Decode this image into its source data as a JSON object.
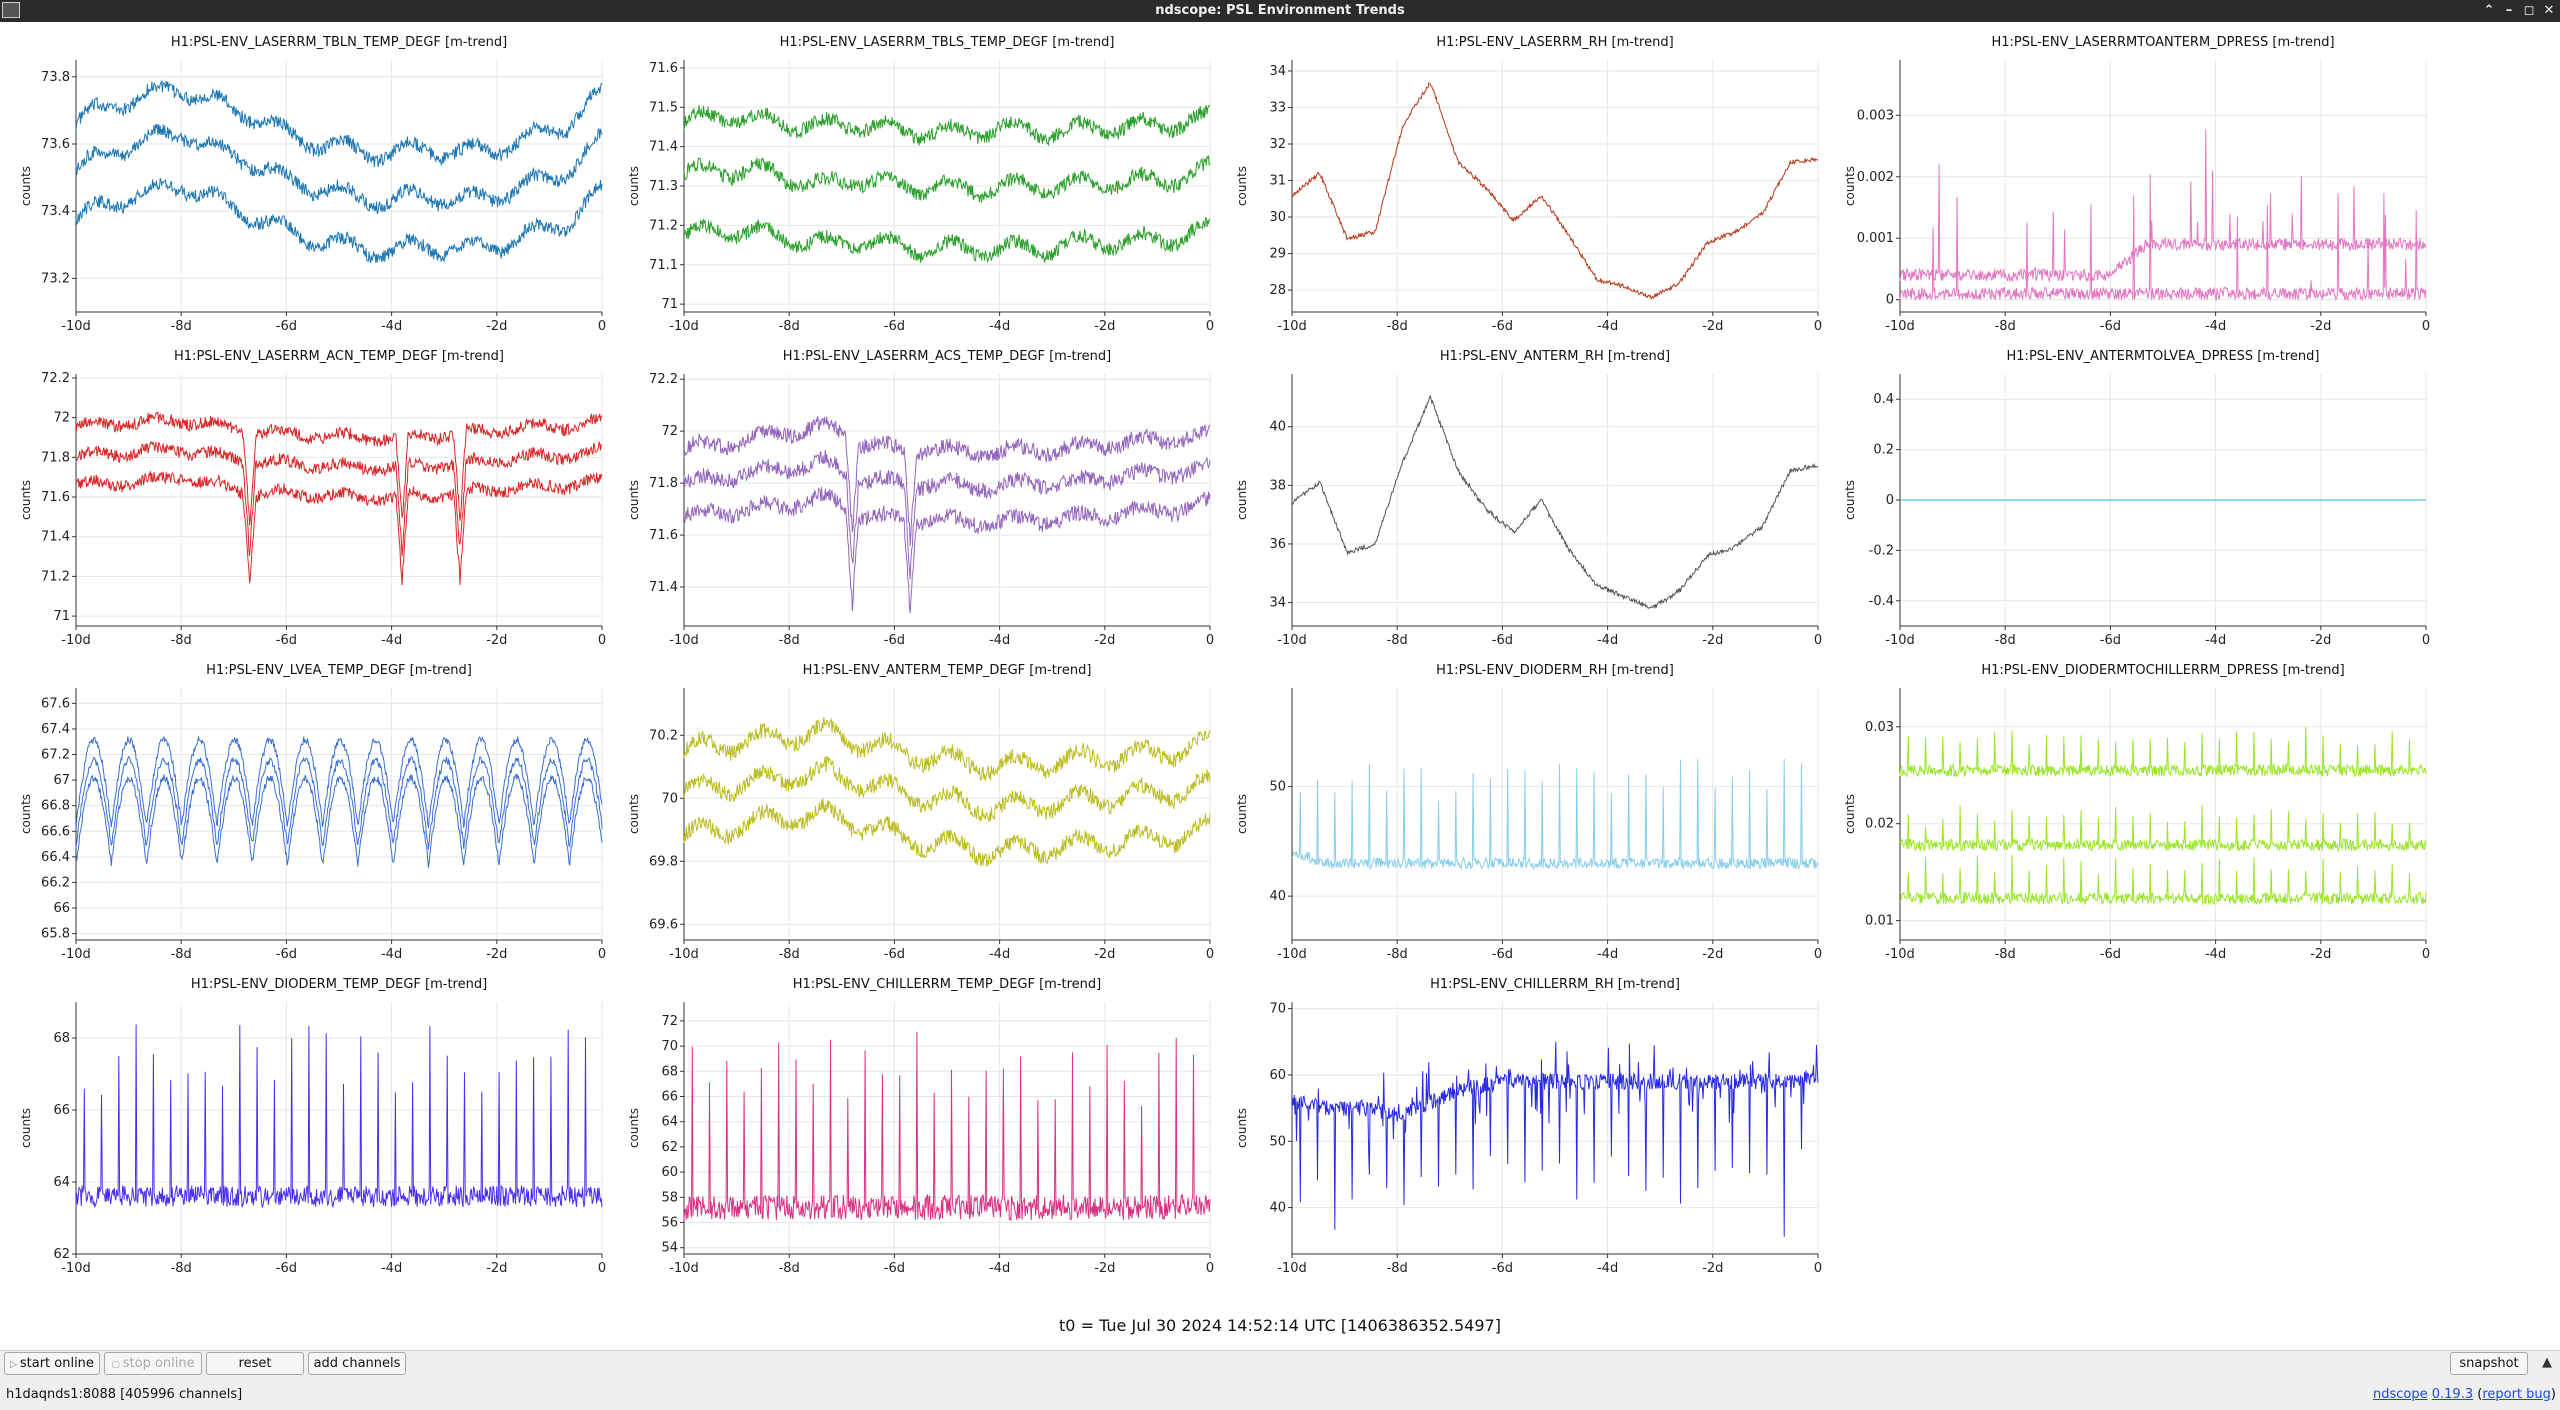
{
  "window": {
    "title": "ndscope: PSL Environment Trends"
  },
  "xticks": [
    "-10d",
    "-8d",
    "-6d",
    "-4d",
    "-2d",
    "0"
  ],
  "ylabel": "counts",
  "plots": [
    {
      "title": "H1:PSL-ENV_LASERRM_TBLN_TEMP_DEGF [m-trend]",
      "color": "#1f77b4",
      "yticks": [
        "73.8",
        "73.6",
        "73.4",
        "73.2"
      ],
      "ylim": [
        73.1,
        73.85
      ],
      "bands": [
        [
          73.66,
          73.72,
          73.74,
          73.77,
          73.72,
          73.69,
          73.63,
          73.6,
          73.58,
          73.57,
          73.59,
          73.57,
          73.59,
          73.62,
          73.66,
          73.75
        ],
        [
          73.52,
          73.58,
          73.61,
          73.64,
          73.58,
          73.55,
          73.49,
          73.47,
          73.44,
          73.43,
          73.45,
          73.43,
          73.45,
          73.48,
          73.52,
          73.61
        ],
        [
          73.37,
          73.43,
          73.45,
          73.48,
          73.43,
          73.39,
          73.34,
          73.31,
          73.29,
          73.28,
          73.3,
          73.28,
          73.3,
          73.33,
          73.37,
          73.46
        ]
      ],
      "noise": 0.02,
      "wave": 0.025
    },
    {
      "title": "H1:PSL-ENV_LASERRM_TBLS_TEMP_DEGF [m-trend]",
      "color": "#2ca02c",
      "yticks": [
        "71.6",
        "71.5",
        "71.4",
        "71.3",
        "71.2",
        "71.1",
        "71"
      ],
      "ylim": [
        70.98,
        71.62
      ],
      "bands": [
        [
          71.46,
          71.48,
          71.47,
          71.46,
          71.45,
          71.46,
          71.44,
          71.44,
          71.43,
          71.45,
          71.44,
          71.44,
          71.45,
          71.45,
          71.46,
          71.47
        ],
        [
          71.33,
          71.34,
          71.34,
          71.32,
          71.3,
          71.32,
          71.3,
          71.3,
          71.29,
          71.3,
          71.3,
          71.3,
          71.31,
          71.31,
          71.32,
          71.34
        ],
        [
          71.17,
          71.19,
          71.18,
          71.17,
          71.15,
          71.16,
          71.15,
          71.14,
          71.14,
          71.14,
          71.14,
          71.15,
          71.16,
          71.16,
          71.17,
          71.19
        ]
      ],
      "noise": 0.018,
      "wave": 0.02
    },
    {
      "title": "H1:PSL-ENV_LASERRM_RH [m-trend]",
      "color": "#b83a1c",
      "yticks": [
        "34",
        "33",
        "32",
        "31",
        "30",
        "29",
        "28"
      ],
      "ylim": [
        27.4,
        34.3
      ],
      "bands": [
        [
          30.6,
          31.2,
          29.4,
          29.6,
          32.5,
          33.7,
          31.5,
          30.8,
          29.9,
          30.6,
          29.5,
          28.3,
          28.1,
          27.8,
          28.2,
          29.3,
          29.6,
          30.1,
          31.5,
          31.6
        ]
      ],
      "noise": 0.06,
      "wave": 0.0
    },
    {
      "title": "H1:PSL-ENV_LASERRMTOANTERM_DPRESS [m-trend]",
      "color": "#e377c2",
      "yticks": [
        "0.003",
        "0.002",
        "0.001",
        "0"
      ],
      "ylim": [
        -0.0002,
        0.0039
      ],
      "bands": [
        [
          0.0004,
          0.0004,
          0.0004,
          0.0004,
          0.0004,
          0.0004,
          0.0004,
          0.0009,
          0.0009,
          0.0009,
          0.0009,
          0.0009,
          0.0009,
          0.0009,
          0.0009,
          0.0009
        ],
        [
          0.0001,
          0.0001,
          0.0001,
          0.0001,
          0.0001,
          0.0001,
          0.0001,
          0.0001,
          0.0001,
          0.0001,
          0.0001,
          0.0001,
          0.0001,
          0.0001,
          0.0001,
          0.0001
        ]
      ],
      "noise": 0.0001,
      "wave": 0.0,
      "spiky": true
    },
    {
      "title": "H1:PSL-ENV_LASERRM_ACN_TEMP_DEGF [m-trend]",
      "color": "#d62728",
      "yticks": [
        "72.2",
        "72",
        "71.8",
        "71.6",
        "71.4",
        "71.2",
        "71"
      ],
      "ylim": [
        70.95,
        72.22
      ],
      "bands": [
        [
          71.95,
          71.97,
          71.98,
          71.99,
          71.96,
          71.93,
          71.92,
          71.91,
          71.9,
          71.9,
          71.91,
          71.92,
          71.94,
          71.95,
          71.96,
          71.98
        ],
        [
          71.8,
          71.82,
          71.83,
          71.84,
          71.81,
          71.78,
          71.77,
          71.76,
          71.75,
          71.75,
          71.76,
          71.77,
          71.79,
          71.8,
          71.81,
          71.83
        ],
        [
          71.66,
          71.67,
          71.68,
          71.7,
          71.66,
          71.62,
          71.62,
          71.61,
          71.6,
          71.6,
          71.61,
          71.62,
          71.64,
          71.65,
          71.66,
          71.68
        ]
      ],
      "noise": 0.03,
      "wave": 0.02,
      "dips": [
        0.33,
        0.62,
        0.73
      ]
    },
    {
      "title": "H1:PSL-ENV_LASERRM_ACS_TEMP_DEGF [m-trend]",
      "color": "#9467bd",
      "yticks": [
        "72.2",
        "72",
        "71.8",
        "71.6",
        "71.4"
      ],
      "ylim": [
        71.25,
        72.22
      ],
      "bands": [
        [
          71.93,
          71.95,
          71.97,
          72.0,
          72.02,
          71.96,
          71.93,
          71.93,
          71.92,
          71.92,
          71.93,
          71.93,
          71.95,
          71.96,
          71.97,
          71.98
        ],
        [
          71.8,
          71.82,
          71.84,
          71.86,
          71.88,
          71.82,
          71.8,
          71.8,
          71.79,
          71.79,
          71.8,
          71.8,
          71.82,
          71.83,
          71.84,
          71.85
        ],
        [
          71.67,
          71.69,
          71.7,
          71.72,
          71.74,
          71.68,
          71.66,
          71.66,
          71.65,
          71.65,
          71.66,
          71.66,
          71.68,
          71.69,
          71.7,
          71.72
        ]
      ],
      "noise": 0.03,
      "wave": 0.02,
      "dips": [
        0.32,
        0.43
      ]
    },
    {
      "title": "H1:PSL-ENV_ANTERM_RH [m-trend]",
      "color": "#555555",
      "yticks": [
        "40",
        "38",
        "36",
        "34"
      ],
      "ylim": [
        33.2,
        41.8
      ],
      "bands": [
        [
          37.4,
          38.1,
          35.7,
          36.0,
          38.8,
          41.0,
          38.5,
          37.2,
          36.4,
          37.5,
          35.8,
          34.6,
          34.2,
          33.8,
          34.4,
          35.6,
          35.9,
          36.6,
          38.5,
          38.7
        ]
      ],
      "noise": 0.08,
      "wave": 0.0
    },
    {
      "title": "H1:PSL-ENV_ANTERMTOLVEA_DPRESS [m-trend]",
      "color": "#17becf",
      "yticks": [
        "0.4",
        "0.2",
        "0",
        "-0.2",
        "-0.4"
      ],
      "ylim": [
        -0.5,
        0.5
      ],
      "bands": [
        [
          0,
          0,
          0,
          0,
          0,
          0,
          0,
          0,
          0,
          0,
          0,
          0,
          0,
          0,
          0,
          0
        ]
      ],
      "noise": 0.0,
      "wave": 0.0
    },
    {
      "title": "H1:PSL-ENV_LVEA_TEMP_DEGF [m-trend]",
      "color": "#3a6fd0",
      "yticks": [
        "67.6",
        "67.4",
        "67.2",
        "67",
        "66.8",
        "66.6",
        "66.4",
        "66.2",
        "66",
        "65.8"
      ],
      "ylim": [
        65.75,
        67.72
      ],
      "bands": [
        [
          66.98,
          66.98,
          66.98,
          66.98,
          66.98,
          66.98,
          66.98,
          66.98,
          66.98,
          66.98,
          66.98,
          66.98,
          66.98,
          66.98,
          66.98,
          66.98
        ],
        [
          66.82,
          66.82,
          66.82,
          66.82,
          66.82,
          66.82,
          66.82,
          66.82,
          66.82,
          66.82,
          66.82,
          66.82,
          66.82,
          66.82,
          66.82,
          66.82
        ],
        [
          66.68,
          66.68,
          66.68,
          66.68,
          66.68,
          66.68,
          66.68,
          66.68,
          66.68,
          66.68,
          66.68,
          66.68,
          66.68,
          66.68,
          66.68,
          66.68
        ]
      ],
      "noise": 0.03,
      "wave": 0.42,
      "period": 0.067
    },
    {
      "title": "H1:PSL-ENV_ANTERM_TEMP_DEGF [m-trend]",
      "color": "#bcbd22",
      "yticks": [
        "70.2",
        "70",
        "69.8",
        "69.6"
      ],
      "ylim": [
        69.55,
        70.35
      ],
      "bands": [
        [
          70.15,
          70.17,
          70.18,
          70.2,
          70.21,
          70.18,
          70.15,
          70.13,
          70.11,
          70.1,
          70.11,
          70.12,
          70.13,
          70.14,
          70.15,
          70.17
        ],
        [
          70.02,
          70.04,
          70.05,
          70.07,
          70.08,
          70.05,
          70.02,
          70.0,
          69.98,
          69.97,
          69.98,
          69.99,
          70.0,
          70.01,
          70.02,
          70.04
        ],
        [
          69.88,
          69.9,
          69.92,
          69.94,
          69.95,
          69.92,
          69.88,
          69.86,
          69.84,
          69.83,
          69.84,
          69.85,
          69.86,
          69.87,
          69.88,
          69.9
        ]
      ],
      "noise": 0.025,
      "wave": 0.03
    },
    {
      "title": "H1:PSL-ENV_DIODERM_RH [m-trend]",
      "color": "#87ceeb",
      "yticks": [
        "50",
        "40"
      ],
      "ylim": [
        36,
        59
      ],
      "bands": [
        [
          44,
          43,
          43,
          43,
          43,
          43,
          43,
          43,
          43,
          43,
          43,
          43,
          43,
          43,
          43,
          43
        ]
      ],
      "noise": 0.5,
      "wave": 0.0,
      "spikes": true,
      "spikeAmp": 10
    },
    {
      "title": "H1:PSL-ENV_DIODERMTOCHILLERRM_DPRESS [m-trend]",
      "color": "#9ae52a",
      "yticks": [
        "0.03",
        "0.02",
        "0.01"
      ],
      "ylim": [
        0.008,
        0.034
      ],
      "bands": [
        [
          0.0255,
          0.0255,
          0.0255,
          0.0255,
          0.0255,
          0.0255,
          0.0255,
          0.0255,
          0.0255,
          0.0255,
          0.0255,
          0.0255,
          0.0255,
          0.0255,
          0.0255,
          0.0255
        ],
        [
          0.0178,
          0.0178,
          0.0178,
          0.0178,
          0.0178,
          0.0178,
          0.0178,
          0.0178,
          0.0178,
          0.0178,
          0.0178,
          0.0178,
          0.0178,
          0.0178,
          0.0178,
          0.0178
        ],
        [
          0.0123,
          0.0123,
          0.0123,
          0.0123,
          0.0123,
          0.0123,
          0.0123,
          0.0123,
          0.0123,
          0.0123,
          0.0123,
          0.0123,
          0.0123,
          0.0123,
          0.0123,
          0.0123
        ]
      ],
      "noise": 0.0006,
      "wave": 0.0,
      "spikes": true,
      "spikeAmp": 0.004
    },
    {
      "title": "H1:PSL-ENV_DIODERM_TEMP_DEGF [m-trend]",
      "color": "#4a2ff0",
      "yticks": [
        "68",
        "66",
        "64",
        "62"
      ],
      "ylim": [
        62,
        69
      ],
      "bands": [
        [
          63.6,
          63.6,
          63.6,
          63.6,
          63.6,
          63.6,
          63.6,
          63.6,
          63.6,
          63.6,
          63.6,
          63.6,
          63.6,
          63.6,
          63.6,
          63.6
        ]
      ],
      "noise": 0.3,
      "wave": 0.0,
      "spikes": true,
      "spikeAmp": 4.8
    },
    {
      "title": "H1:PSL-ENV_CHILLERRM_TEMP_DEGF [m-trend]",
      "color": "#d63384",
      "yticks": [
        "72",
        "70",
        "68",
        "66",
        "64",
        "62",
        "60",
        "58",
        "56",
        "54"
      ],
      "ylim": [
        53.5,
        73.5
      ],
      "bands": [
        [
          57.2,
          57.2,
          57.2,
          57.2,
          57.2,
          57.2,
          57.2,
          57.2,
          57.2,
          57.2,
          57.2,
          57.2,
          57.2,
          57.2,
          57.2,
          57.2
        ]
      ],
      "noise": 1.0,
      "wave": 0.0,
      "spikes": true,
      "spikeAmp": 14
    },
    {
      "title": "H1:PSL-ENV_CHILLERRM_RH [m-trend]",
      "color": "#2a2be0",
      "yticks": [
        "70",
        "60",
        "50",
        "40"
      ],
      "ylim": [
        33,
        71
      ],
      "bands": [
        [
          56,
          55,
          55,
          54,
          56,
          58,
          59,
          59,
          59,
          59,
          59,
          59,
          59,
          59,
          59,
          60
        ]
      ],
      "noise": 1.2,
      "wave": 0.0,
      "spikes": true,
      "spikeAmp": -18,
      "bursts": true
    }
  ],
  "t0": "t0 = Tue Jul 30 2024 14:52:14 UTC [1406386352.5497]",
  "buttons": {
    "start_online": "start online",
    "stop_online": "stop online",
    "reset": "reset",
    "add_channels": "add channels",
    "snapshot": "snapshot"
  },
  "status": "h1daqnds1:8088  [405996 channels]",
  "version": {
    "name": "ndscope",
    "number": "0.19.3",
    "report": "report bug"
  }
}
